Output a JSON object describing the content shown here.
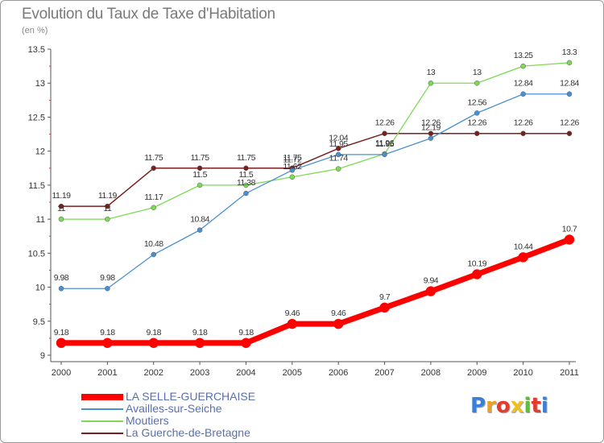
{
  "chart_data": {
    "type": "line",
    "title": "Evolution du Taux de Taxe d'Habitation",
    "subtitle": "(en %)",
    "x": [
      "2000",
      "2001",
      "2002",
      "2003",
      "2004",
      "2005",
      "2006",
      "2007",
      "2008",
      "2009",
      "2010",
      "2011"
    ],
    "ylim": [
      9,
      13.5
    ],
    "yticks": [
      "9",
      "9.5",
      "10",
      "10.5",
      "11",
      "11.5",
      "12",
      "12.5",
      "13",
      "13.5"
    ],
    "grid": false,
    "legend_position": "bottom-left",
    "series": [
      {
        "name": "LA SELLE-GUERCHAISE",
        "color": "#ff0000",
        "values": [
          9.18,
          9.18,
          9.18,
          9.18,
          9.18,
          9.46,
          9.46,
          9.7,
          9.94,
          10.19,
          10.44,
          10.7
        ],
        "labels": [
          "9.18",
          "9.18",
          "9.18",
          "9.18",
          "9.18",
          "9.46",
          "9.46",
          "9.7",
          "9.94",
          "10.19",
          "10.44",
          "10.7"
        ]
      },
      {
        "name": "Availles-sur-Seiche",
        "color": "#4a90d0",
        "values": [
          9.98,
          9.98,
          10.48,
          10.84,
          11.38,
          11.72,
          11.95,
          11.95,
          12.19,
          12.56,
          12.84,
          12.84
        ],
        "labels": [
          "9.98",
          "9.98",
          "10.48",
          "10.84",
          "11.38",
          "11.72",
          "11.95",
          "11.95",
          "12.19",
          "12.56",
          "12.84",
          "12.84"
        ]
      },
      {
        "name": "Moutiers",
        "color": "#7ed957",
        "values": [
          11,
          11,
          11.17,
          11.5,
          11.5,
          11.62,
          11.74,
          11.96,
          13,
          13,
          13.25,
          13.3
        ],
        "labels": [
          "11",
          "11",
          "11.17",
          "11.5",
          "11.5",
          "11.62",
          "11.74",
          "11.96",
          "13",
          "13",
          "13.25",
          "13.3"
        ]
      },
      {
        "name": "La Guerche-de-Bretagne",
        "color": "#7a1f1f",
        "values": [
          11.19,
          11.19,
          11.75,
          11.75,
          11.75,
          11.75,
          12.04,
          12.26,
          12.26,
          12.26,
          12.26,
          12.26
        ],
        "labels": [
          "11.19",
          "11.19",
          "11.75",
          "11.75",
          "11.75",
          "11.75",
          "12.04",
          "12.26",
          "12.26",
          "12.26",
          "12.26",
          "12.26"
        ]
      }
    ]
  },
  "logo": {
    "letters": [
      "P",
      "r",
      "o",
      "x",
      "i",
      "t",
      "i"
    ]
  }
}
